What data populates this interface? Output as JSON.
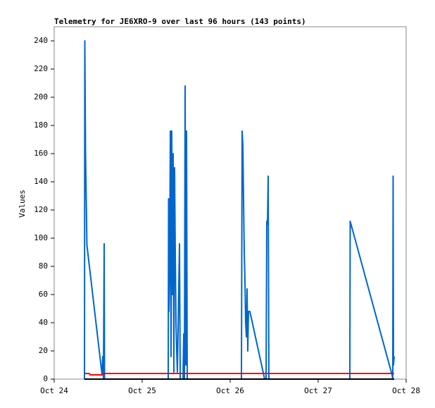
{
  "chart_data": {
    "type": "line",
    "title": "Telemetry for JE6XRO-9 over last 96 hours (143 points)",
    "y_label": "Values",
    "xlim": [
      0,
      4
    ],
    "xticks": [
      {
        "value": 0,
        "label": "Oct 24"
      },
      {
        "value": 1,
        "label": "Oct 25"
      },
      {
        "value": 2,
        "label": "Oct 26"
      },
      {
        "value": 3,
        "label": "Oct 27"
      },
      {
        "value": 4,
        "label": "Oct 28"
      }
    ],
    "ylim": [
      0,
      250
    ],
    "yticks": [
      0,
      20,
      40,
      60,
      80,
      100,
      120,
      140,
      160,
      180,
      200,
      220,
      240
    ],
    "grid": false,
    "series": [
      {
        "color": "#0066cc",
        "x": [
          0.344,
          0.348,
          0.356,
          0.364,
          0.372,
          0.544,
          0.552,
          0.56,
          0.568,
          0.572,
          1.296,
          1.3,
          1.304,
          1.312,
          1.32,
          1.328,
          1.336,
          1.344,
          1.352,
          1.36,
          1.368,
          1.376,
          1.384,
          1.392,
          1.4,
          1.424,
          1.432,
          1.464,
          1.472,
          1.48,
          1.488,
          1.496,
          1.504,
          1.512,
          2.128,
          2.136,
          2.144,
          2.152,
          2.16,
          2.168,
          2.176,
          2.184,
          2.192,
          2.2,
          2.208,
          2.224,
          2.392,
          2.408,
          2.416,
          2.424,
          2.432,
          2.44,
          3.36,
          3.364,
          3.84,
          3.848,
          3.852,
          3.856,
          3.864
        ],
        "values": [
          0,
          240,
          160,
          128,
          95,
          3,
          16,
          0,
          96,
          0,
          0,
          128,
          48,
          80,
          176,
          16,
          176,
          60,
          160,
          5,
          150,
          90,
          40,
          20,
          5,
          96,
          0,
          0,
          32,
          0,
          208,
          10,
          176,
          0,
          0,
          176,
          166,
          128,
          90,
          70,
          40,
          30,
          64,
          20,
          48,
          48,
          0,
          0,
          112,
          110,
          144,
          0,
          0,
          112,
          3,
          0,
          144,
          10,
          16
        ]
      },
      {
        "color": "#ff0000",
        "x": [
          0.344,
          0.4,
          0.408,
          0.544,
          0.568,
          3.864
        ],
        "values": [
          4,
          4,
          3,
          3,
          4,
          4
        ]
      },
      {
        "color": "#000000",
        "x": [
          0.344,
          3.864
        ],
        "values": [
          0,
          0
        ]
      }
    ]
  }
}
